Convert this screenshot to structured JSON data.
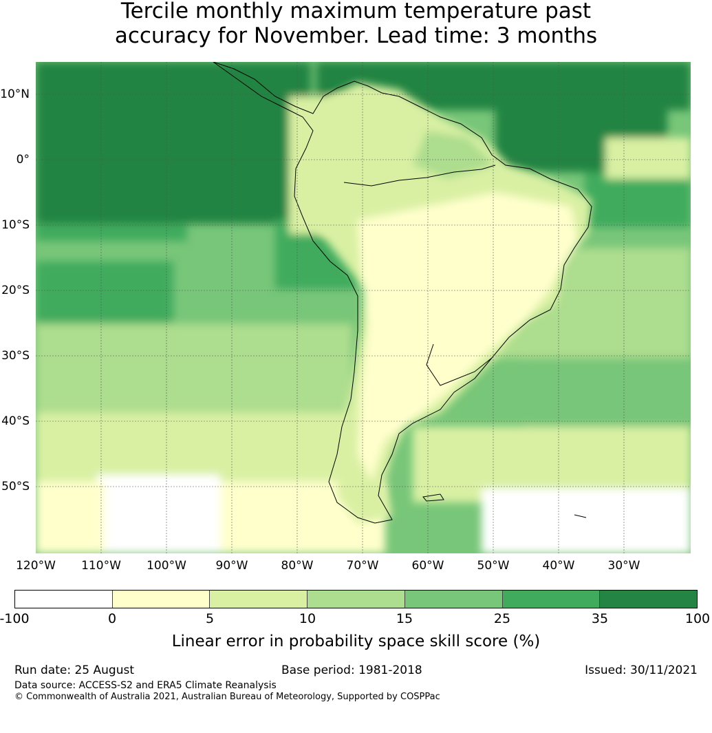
{
  "title": {
    "line1": "Tercile monthly maximum temperature past",
    "line2": "accuracy for November. Lead time: 3 months"
  },
  "map": {
    "latitude_labels": [
      "10°N",
      "0°",
      "10°S",
      "20°S",
      "30°S",
      "40°S",
      "50°S"
    ],
    "longitude_labels": [
      "120°W",
      "110°W",
      "100°W",
      "90°W",
      "80°W",
      "70°W",
      "60°W",
      "50°W",
      "40°W",
      "30°W"
    ]
  },
  "colorbar": {
    "ticks": [
      "-100",
      "0",
      "5",
      "10",
      "15",
      "25",
      "35",
      "100"
    ],
    "colors": [
      "#ffffff",
      "#ffffcc",
      "#d9f0a3",
      "#addd8e",
      "#78c679",
      "#41ab5d",
      "#238443"
    ],
    "label": "Linear error in probability space skill score (%)"
  },
  "footer": {
    "run_date": "Run date: 25 August",
    "base_period": "Base period: 1981-2018",
    "issued": "Issued: 30/11/2021",
    "data_source": "Data source: ACCESS-S2 and ERA5 Climate Reanalysis",
    "copyright": "© Commonwealth of Australia 2021, Australian Bureau of Meteorology, Supported by COSPPac"
  }
}
